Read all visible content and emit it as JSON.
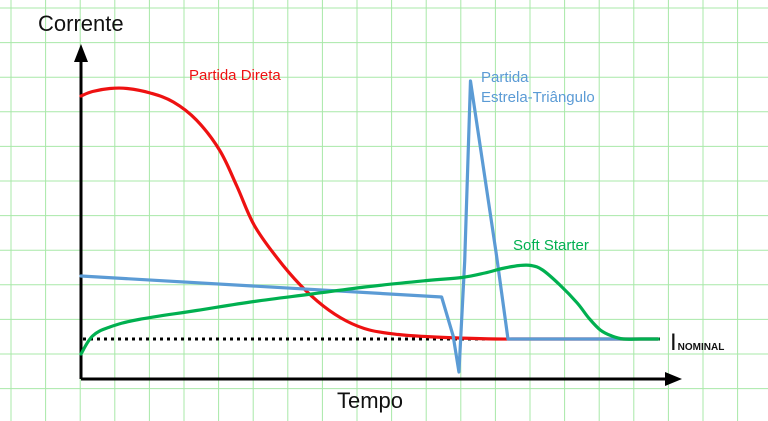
{
  "chart_data": {
    "type": "line",
    "ylabel": "Corrente",
    "xlabel": "Tempo",
    "xlim": [
      0,
      100
    ],
    "ylim": [
      0,
      100
    ],
    "grid": true,
    "nominal": {
      "label_main": "I",
      "label_sub": "NOMINAL",
      "value": 12
    },
    "series": [
      {
        "name": "Partida Direta",
        "label_lines": [
          "Partida Direta"
        ],
        "color": "#ee1111",
        "x": [
          0,
          2,
          5,
          8,
          12,
          16,
          20,
          24,
          27,
          30,
          34,
          38,
          42,
          46,
          50,
          55,
          60,
          66,
          72,
          76,
          80,
          86,
          92,
          100
        ],
        "y": [
          93,
          94.5,
          95.5,
          95.5,
          94,
          91,
          85,
          75,
          63,
          50,
          39,
          30,
          23,
          18,
          15,
          13.5,
          12.8,
          12.3,
          12,
          12,
          12,
          12,
          12,
          12
        ]
      },
      {
        "name": "Partida Estrela-Triângulo",
        "label_lines": [
          "Partida",
          "Estrela-Triângulo"
        ],
        "color": "#5b9bd5",
        "x": [
          0,
          62.5,
          64.5,
          65.5,
          66.5,
          67.5,
          72,
          74,
          75,
          80,
          86,
          92,
          100
        ],
        "y": [
          33,
          26,
          13,
          1,
          38,
          98,
          40,
          12,
          12,
          12,
          12,
          12,
          12
        ],
        "break_after_index": 1
      },
      {
        "name": "Soft Starter",
        "label_lines": [
          "Soft Starter"
        ],
        "color": "#00b050",
        "x": [
          0,
          2,
          5,
          10,
          20,
          30,
          40,
          50,
          60,
          66,
          70,
          73,
          76,
          78,
          80,
          83,
          86,
          88,
          90,
          92,
          94,
          97,
          100
        ],
        "y": [
          7,
          13,
          16,
          18.5,
          21.5,
          24.5,
          27,
          29.5,
          31.5,
          32.5,
          34,
          35.5,
          36.5,
          36.5,
          35,
          30,
          24,
          19,
          15,
          13,
          12,
          12,
          12
        ]
      }
    ]
  }
}
